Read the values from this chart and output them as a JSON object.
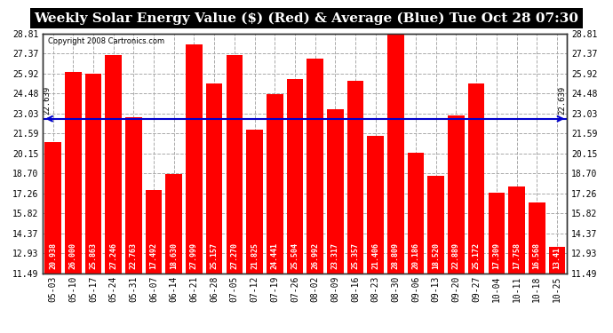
{
  "title": "Weekly Solar Energy Value ($) (Red) & Average (Blue) Tue Oct 28 07:30",
  "copyright": "Copyright 2008 Cartronics.com",
  "categories": [
    "05-03",
    "05-10",
    "05-17",
    "05-24",
    "05-31",
    "06-07",
    "06-14",
    "06-21",
    "06-28",
    "07-05",
    "07-12",
    "07-19",
    "07-26",
    "08-02",
    "08-09",
    "08-16",
    "08-23",
    "08-30",
    "09-06",
    "09-13",
    "09-20",
    "09-27",
    "10-04",
    "10-11",
    "10-18",
    "10-25"
  ],
  "values": [
    20.938,
    26.0,
    25.863,
    27.246,
    22.763,
    17.492,
    18.63,
    27.999,
    25.157,
    27.27,
    21.825,
    24.441,
    25.504,
    26.992,
    23.317,
    25.357,
    21.406,
    28.809,
    20.186,
    18.52,
    22.889,
    25.172,
    17.309,
    17.758,
    16.568,
    13.41
  ],
  "average": 22.639,
  "bar_color": "#ff0000",
  "avg_line_color": "#0000cc",
  "background_color": "#ffffff",
  "plot_bg_color": "#ffffff",
  "grid_color": "#aaaaaa",
  "text_color": "#000000",
  "title_bg_color": "#000000",
  "title_text_color": "#ffffff",
  "ylim_min": 11.49,
  "ylim_max": 28.81,
  "yticks": [
    11.49,
    12.93,
    14.37,
    15.82,
    17.26,
    18.7,
    20.15,
    21.59,
    23.03,
    24.48,
    25.92,
    27.37,
    28.81
  ],
  "avg_label": "22.639",
  "title_fontsize": 11,
  "tick_fontsize": 7,
  "bar_value_fontsize": 6
}
